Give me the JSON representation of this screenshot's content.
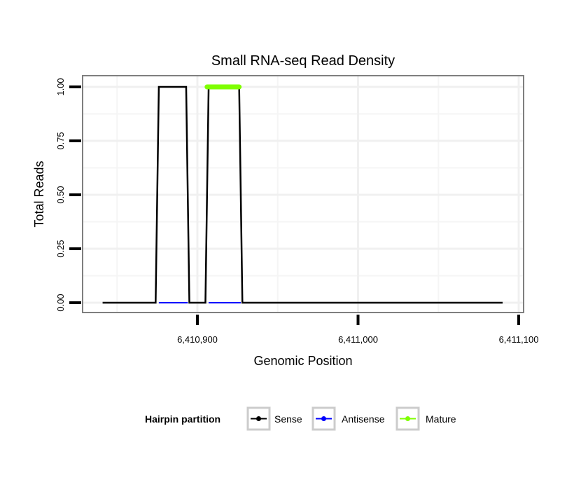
{
  "chart_data": {
    "type": "line",
    "title": "Small RNA-seq Read Density",
    "xlabel": "Genomic Position",
    "ylabel": "Total Reads",
    "xlim": [
      6410829,
      6411104
    ],
    "ylim": [
      -0.05,
      1.05
    ],
    "x_ticks": [
      6410900,
      6411000,
      6411100
    ],
    "x_tick_labels": [
      "6,410,900",
      "6,411,000",
      "6,411,100"
    ],
    "y_ticks": [
      0,
      0.25,
      0.5,
      0.75,
      1.0
    ],
    "y_tick_labels": [
      "0.00",
      "0.25",
      "0.50",
      "0.75",
      "1.00"
    ],
    "grid": true,
    "legend": {
      "title": "Hairpin partition",
      "position": "bottom"
    },
    "series": [
      {
        "name": "Sense",
        "color": "#000000",
        "segments": [
          [
            [
              6410841,
              0
            ],
            [
              6410874,
              0
            ],
            [
              6410876,
              1
            ],
            [
              6410893,
              1
            ],
            [
              6410895,
              0
            ],
            [
              6410905,
              0
            ],
            [
              6410907,
              1
            ],
            [
              6410926,
              1
            ],
            [
              6410928,
              0
            ],
            [
              6411090,
              0
            ]
          ]
        ]
      },
      {
        "name": "Antisense",
        "color": "#0000ff",
        "segments": [
          [
            [
              6410876,
              0
            ],
            [
              6410894,
              0
            ]
          ],
          [
            [
              6410907,
              0
            ],
            [
              6410927,
              0
            ]
          ]
        ]
      },
      {
        "name": "Mature",
        "color": "#7fff00",
        "segments": [
          [
            [
              6410906,
              1
            ],
            [
              6410926,
              1
            ]
          ]
        ]
      }
    ]
  }
}
